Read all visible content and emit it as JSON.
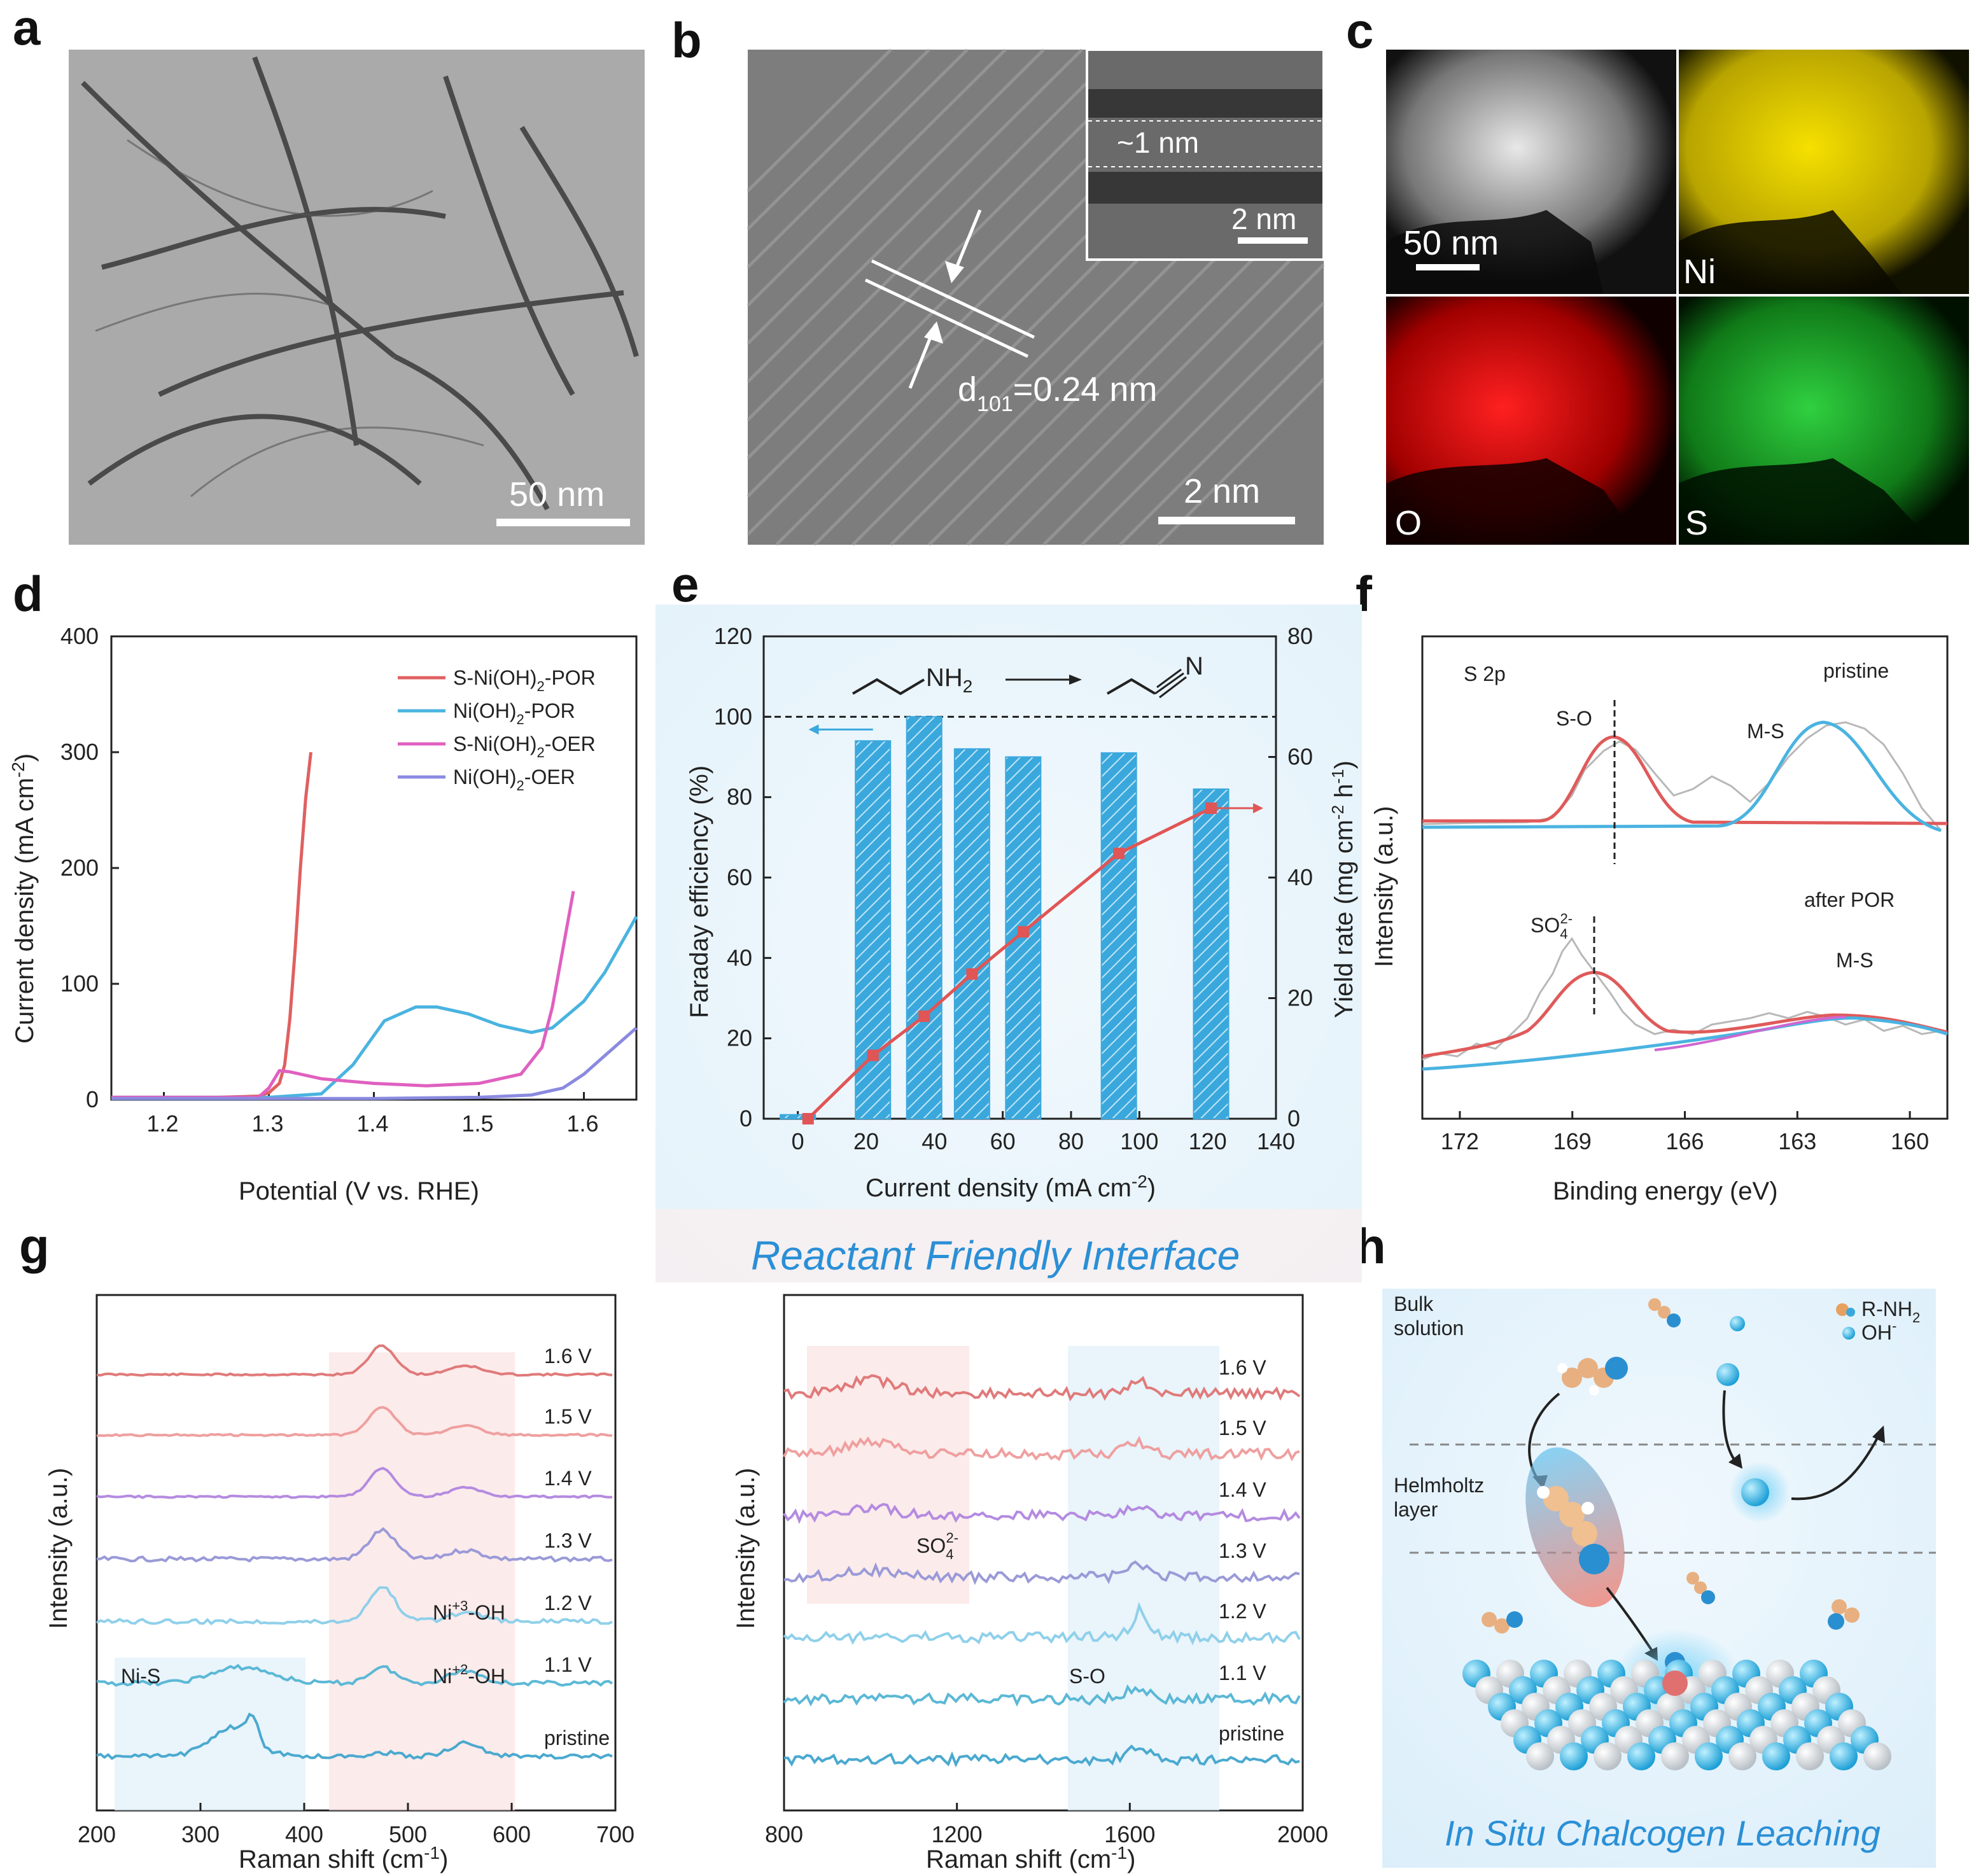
{
  "panels": {
    "a": {
      "label": "a",
      "scalebar": "50 nm"
    },
    "b": {
      "label": "b",
      "scalebar": "2 nm",
      "inset_spacing": "~1 nm",
      "inset_scalebar": "2 nm",
      "d_spacing": "d",
      "d_sub": "101",
      "d_value": "=0.24 nm"
    },
    "c": {
      "label": "c",
      "scalebar": "50 nm",
      "maps": [
        "Ni",
        "O",
        "S"
      ],
      "map_colors": [
        "#e6d200",
        "#e01010",
        "#10b020"
      ]
    },
    "d": {
      "label": "d"
    },
    "e": {
      "label": "e",
      "banner": "Reactant Friendly Interface",
      "reaction_left": "NH",
      "reaction_left_sub": "2",
      "reaction_right": "N"
    },
    "f": {
      "label": "f",
      "core": "S 2p",
      "top": "pristine",
      "bottom": "after POR",
      "peak_so": "S-O",
      "peak_ms": "M-S",
      "peak_ms2": "M-S",
      "peak_so4": "SO",
      "so4_sub": "4",
      "so4_sup": "2-",
      "ylabel": "Intensity (a.u.)",
      "xlabel": "Binding energy (eV)",
      "xticks": [
        "172",
        "169",
        "166",
        "163",
        "160"
      ]
    },
    "g": {
      "label": "g",
      "ylabel": "Intensity (a.u.)",
      "xlabel": "Raman shift (cm",
      "xlabel_sup": "-1",
      "xlabel_end": ")",
      "left_xticks": [
        "200",
        "300",
        "400",
        "500",
        "600",
        "700"
      ],
      "right_xticks": [
        "800",
        "1200",
        "1600",
        "2000"
      ],
      "potentials": [
        "1.6 V",
        "1.5 V",
        "1.4 V",
        "1.3 V",
        "1.2 V",
        "1.1 V",
        "pristine"
      ],
      "band_nis": "Ni-S",
      "band_ni3": "Ni",
      "ni3_sup": "+3",
      "ni3_end": "-OH",
      "band_ni2": "Ni",
      "ni2_sup": "+2",
      "ni2_end": "-OH",
      "band_so": "S-O",
      "band_so4": "SO",
      "so4_sub": "4",
      "so4_sup": "2-",
      "trace_colors": [
        "#e07a7a",
        "#ef9f9f",
        "#b48be0",
        "#9a9ad8",
        "#8fd0ea",
        "#5bb8d6",
        "#4aa9cf"
      ]
    },
    "h": {
      "label": "h",
      "bulk": "Bulk",
      "bulk2": "solution",
      "legend_amine": "R-NH",
      "amine_sub": "2",
      "legend_oh": "OH",
      "oh_sup": "-",
      "helmholtz": "Helmholtz",
      "helmholtz2": "layer",
      "caption": "In Situ Chalcogen Leaching"
    }
  },
  "chart_data": [
    {
      "panel": "d",
      "type": "line",
      "xlabel": "Potential (V vs. RHE)",
      "ylabel": "Current density (mA cm",
      "ylabel_sup": "-2",
      "ylabel_end": ")",
      "xlim": [
        1.15,
        1.65
      ],
      "ylim": [
        0,
        400
      ],
      "xticks": [
        "1.2",
        "1.3",
        "1.4",
        "1.5",
        "1.6"
      ],
      "yticks": [
        "0",
        "100",
        "200",
        "300",
        "400"
      ],
      "series": [
        {
          "name": "S-Ni(OH)",
          "sub": "2",
          "suffix": "-POR",
          "color": "#e06060",
          "x": [
            1.15,
            1.25,
            1.29,
            1.3,
            1.31,
            1.315,
            1.32,
            1.325,
            1.33,
            1.335,
            1.34
          ],
          "y": [
            2,
            2,
            3,
            6,
            14,
            30,
            70,
            130,
            200,
            260,
            300
          ]
        },
        {
          "name": "Ni(OH)",
          "sub": "2",
          "suffix": "-POR",
          "color": "#4ab3e0",
          "x": [
            1.15,
            1.3,
            1.35,
            1.38,
            1.41,
            1.44,
            1.46,
            1.49,
            1.52,
            1.55,
            1.57,
            1.6,
            1.62,
            1.65
          ],
          "y": [
            2,
            2,
            5,
            30,
            68,
            80,
            80,
            74,
            64,
            58,
            62,
            85,
            110,
            158
          ]
        },
        {
          "name": "S-Ni(OH)",
          "sub": "2",
          "suffix": "-OER",
          "color": "#e060c0",
          "x": [
            1.15,
            1.29,
            1.3,
            1.31,
            1.32,
            1.35,
            1.4,
            1.45,
            1.5,
            1.54,
            1.56,
            1.57,
            1.58,
            1.59
          ],
          "y": [
            2,
            2,
            10,
            25,
            24,
            18,
            14,
            12,
            14,
            22,
            45,
            80,
            130,
            180
          ]
        },
        {
          "name": "Ni(OH)",
          "sub": "2",
          "suffix": "-OER",
          "color": "#8a8ae0",
          "x": [
            1.15,
            1.4,
            1.5,
            1.55,
            1.58,
            1.6,
            1.62,
            1.65
          ],
          "y": [
            1,
            1,
            2,
            4,
            10,
            22,
            38,
            62
          ]
        }
      ]
    },
    {
      "panel": "e",
      "type": "bar+line",
      "xlabel": "Current density (mA cm",
      "xlabel_sup": "-2",
      "xlabel_end": ")",
      "ylabel_left": "Faraday efficiency (%)",
      "ylabel_right": "Yield rate (mg cm",
      "ylabel_right_sup": "-2",
      "ylabel_right_mid": " h",
      "ylabel_right_sup2": "-1",
      "ylabel_right_end": ")",
      "xlim": [
        -10,
        140
      ],
      "ylim_left": [
        0,
        120
      ],
      "ylim_right": [
        0,
        80
      ],
      "xticks": [
        "0",
        "20",
        "40",
        "60",
        "80",
        "100",
        "120",
        "140"
      ],
      "yticks_left": [
        "0",
        "20",
        "40",
        "60",
        "80",
        "100",
        "120"
      ],
      "yticks_right": [
        "0",
        "20",
        "40",
        "60",
        "80"
      ],
      "bars": {
        "x": [
          0,
          22,
          37,
          51,
          66,
          94,
          121
        ],
        "faraday_efficiency": [
          1,
          94,
          100,
          92,
          90,
          91,
          82
        ]
      },
      "line": {
        "x": [
          3,
          22,
          37,
          51,
          66,
          94,
          121
        ],
        "yield_rate": [
          0,
          10.5,
          17,
          24,
          31,
          44,
          51.5
        ]
      },
      "reference_line": 100,
      "bar_color": "#3aa8dc",
      "line_color": "#e05555"
    },
    {
      "panel": "f",
      "type": "line",
      "xlabel": "Binding energy (eV)",
      "xlim": [
        173,
        159
      ],
      "peaks_pristine": [
        {
          "name": "S-O",
          "center": 167.8
        },
        {
          "name": "M-S",
          "center": 162.0
        }
      ],
      "peaks_after_POR": [
        {
          "name": "SO4 2-",
          "center": 168.4
        },
        {
          "name": "M-S",
          "center": 162.0
        }
      ]
    }
  ]
}
